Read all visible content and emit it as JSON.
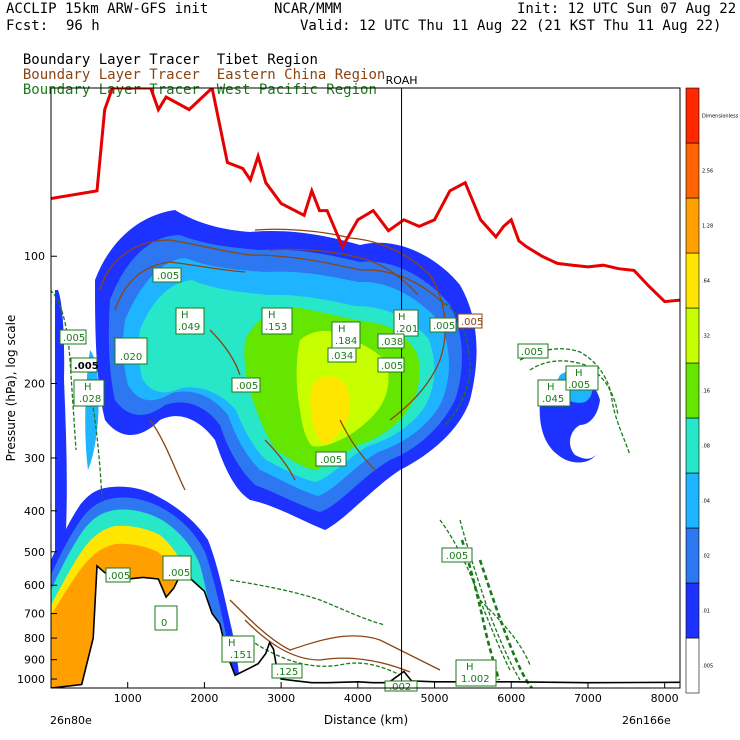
{
  "header": {
    "model": "ACCLIP 15km ARW-GFS init",
    "org": "NCAR/MMM",
    "init": "Init: 12 UTC Sun 07 Aug 22",
    "fcst_label": "Fcst:",
    "fcst_value": "96 h",
    "valid": "Valid: 12 UTC Thu 11 Aug 22 (21 KST Thu 11 Aug 22)",
    "tracers": [
      {
        "label": "Boundary Layer Tracer",
        "region": "Tibet Region",
        "color": "#000000"
      },
      {
        "label": "Boundary Layer Tracer",
        "region": "Eastern China Region",
        "color": "#8b4513"
      },
      {
        "label": "Boundary Layer Tracer",
        "region": "West Pacific Region",
        "color": "#1a7a1a"
      }
    ]
  },
  "chart_data": {
    "type": "cross-section",
    "xlabel": "Distance (km)",
    "ylabel": "Pressure (hPa), log scale",
    "xlim": [
      0,
      8200
    ],
    "ylim": [
      1050,
      40
    ],
    "y_scale": "log",
    "x_ticks": [
      "1000",
      "2000",
      "3000",
      "4000",
      "5000",
      "6000",
      "7000",
      "8000"
    ],
    "x_tick_values": [
      1000,
      2000,
      3000,
      4000,
      5000,
      6000,
      7000,
      8000
    ],
    "y_ticks": [
      "100",
      "200",
      "300",
      "400",
      "500",
      "600",
      "700",
      "800",
      "900",
      "1000"
    ],
    "y_tick_values": [
      100,
      200,
      300,
      400,
      500,
      600,
      700,
      800,
      900,
      1000
    ],
    "left_endpoint": "26n80e",
    "right_endpoint": "26n166e",
    "marker": {
      "label": "ROAH",
      "x": 4570
    },
    "colorbar": {
      "levels": [
        ".005",
        ".01",
        ".02",
        ".04",
        ".08",
        ".16",
        ".32",
        ".64",
        "1.28",
        "2.56",
        "Dimensionless"
      ],
      "colors": [
        "#ffffff",
        "#1e32ff",
        "#2d78f0",
        "#1eb4ff",
        "#28e6c8",
        "#64e600",
        "#c8ff00",
        "#ffe600",
        "#ffa000",
        "#ff6400",
        "#ff2800"
      ]
    },
    "tropopause": {
      "color": "#e60000",
      "points": [
        [
          0,
          73
        ],
        [
          600,
          70
        ],
        [
          700,
          45
        ],
        [
          800,
          40
        ],
        [
          1300,
          40
        ],
        [
          1400,
          45
        ],
        [
          1500,
          42
        ],
        [
          1800,
          45
        ],
        [
          2100,
          40
        ],
        [
          2300,
          60
        ],
        [
          2500,
          62
        ],
        [
          2600,
          66
        ],
        [
          2700,
          58
        ],
        [
          2800,
          67
        ],
        [
          3000,
          75
        ],
        [
          3300,
          80
        ],
        [
          3400,
          70
        ],
        [
          3500,
          78
        ],
        [
          3600,
          78
        ],
        [
          3800,
          95
        ],
        [
          4000,
          82
        ],
        [
          4200,
          78
        ],
        [
          4400,
          87
        ],
        [
          4600,
          82
        ],
        [
          4800,
          85
        ],
        [
          5000,
          82
        ],
        [
          5200,
          70
        ],
        [
          5400,
          67
        ],
        [
          5600,
          82
        ],
        [
          5800,
          90
        ],
        [
          5900,
          85
        ],
        [
          6000,
          82
        ],
        [
          6100,
          92
        ],
        [
          6200,
          95
        ],
        [
          6400,
          100
        ],
        [
          6600,
          104
        ],
        [
          6800,
          105
        ],
        [
          7000,
          106
        ],
        [
          7200,
          105
        ],
        [
          7400,
          107
        ],
        [
          7600,
          108
        ],
        [
          7800,
          118
        ],
        [
          8000,
          128
        ],
        [
          8200,
          127
        ]
      ]
    },
    "terrain": {
      "color": "#000000",
      "points": [
        [
          0,
          1050
        ],
        [
          400,
          1030
        ],
        [
          550,
          800
        ],
        [
          600,
          540
        ],
        [
          700,
          560
        ],
        [
          800,
          570
        ],
        [
          900,
          560
        ],
        [
          1000,
          580
        ],
        [
          1200,
          575
        ],
        [
          1400,
          580
        ],
        [
          1500,
          640
        ],
        [
          1600,
          610
        ],
        [
          1700,
          560
        ],
        [
          1800,
          575
        ],
        [
          2000,
          620
        ],
        [
          2100,
          700
        ],
        [
          2200,
          740
        ],
        [
          2300,
          880
        ],
        [
          2400,
          980
        ],
        [
          2500,
          960
        ],
        [
          2600,
          940
        ],
        [
          2700,
          920
        ],
        [
          2800,
          870
        ],
        [
          2850,
          820
        ],
        [
          2900,
          850
        ],
        [
          2950,
          960
        ],
        [
          3000,
          1000
        ],
        [
          3200,
          1010
        ],
        [
          3400,
          1020
        ],
        [
          3600,
          1020
        ],
        [
          4000,
          1015
        ],
        [
          4200,
          1020
        ],
        [
          4400,
          1020
        ],
        [
          4600,
          960
        ],
        [
          4700,
          1010
        ],
        [
          5000,
          1015
        ],
        [
          6000,
          1015
        ],
        [
          7000,
          1020
        ],
        [
          8200,
          1018
        ]
      ]
    },
    "annotations": [
      ".005",
      "H",
      ".049",
      ".153",
      ".184",
      ".034",
      ".201",
      ".038",
      ".005",
      ".020",
      ".028",
      ".005",
      ".005",
      ".045",
      ".005",
      ".151",
      ".125",
      ".002",
      "1.002",
      "0"
    ]
  }
}
